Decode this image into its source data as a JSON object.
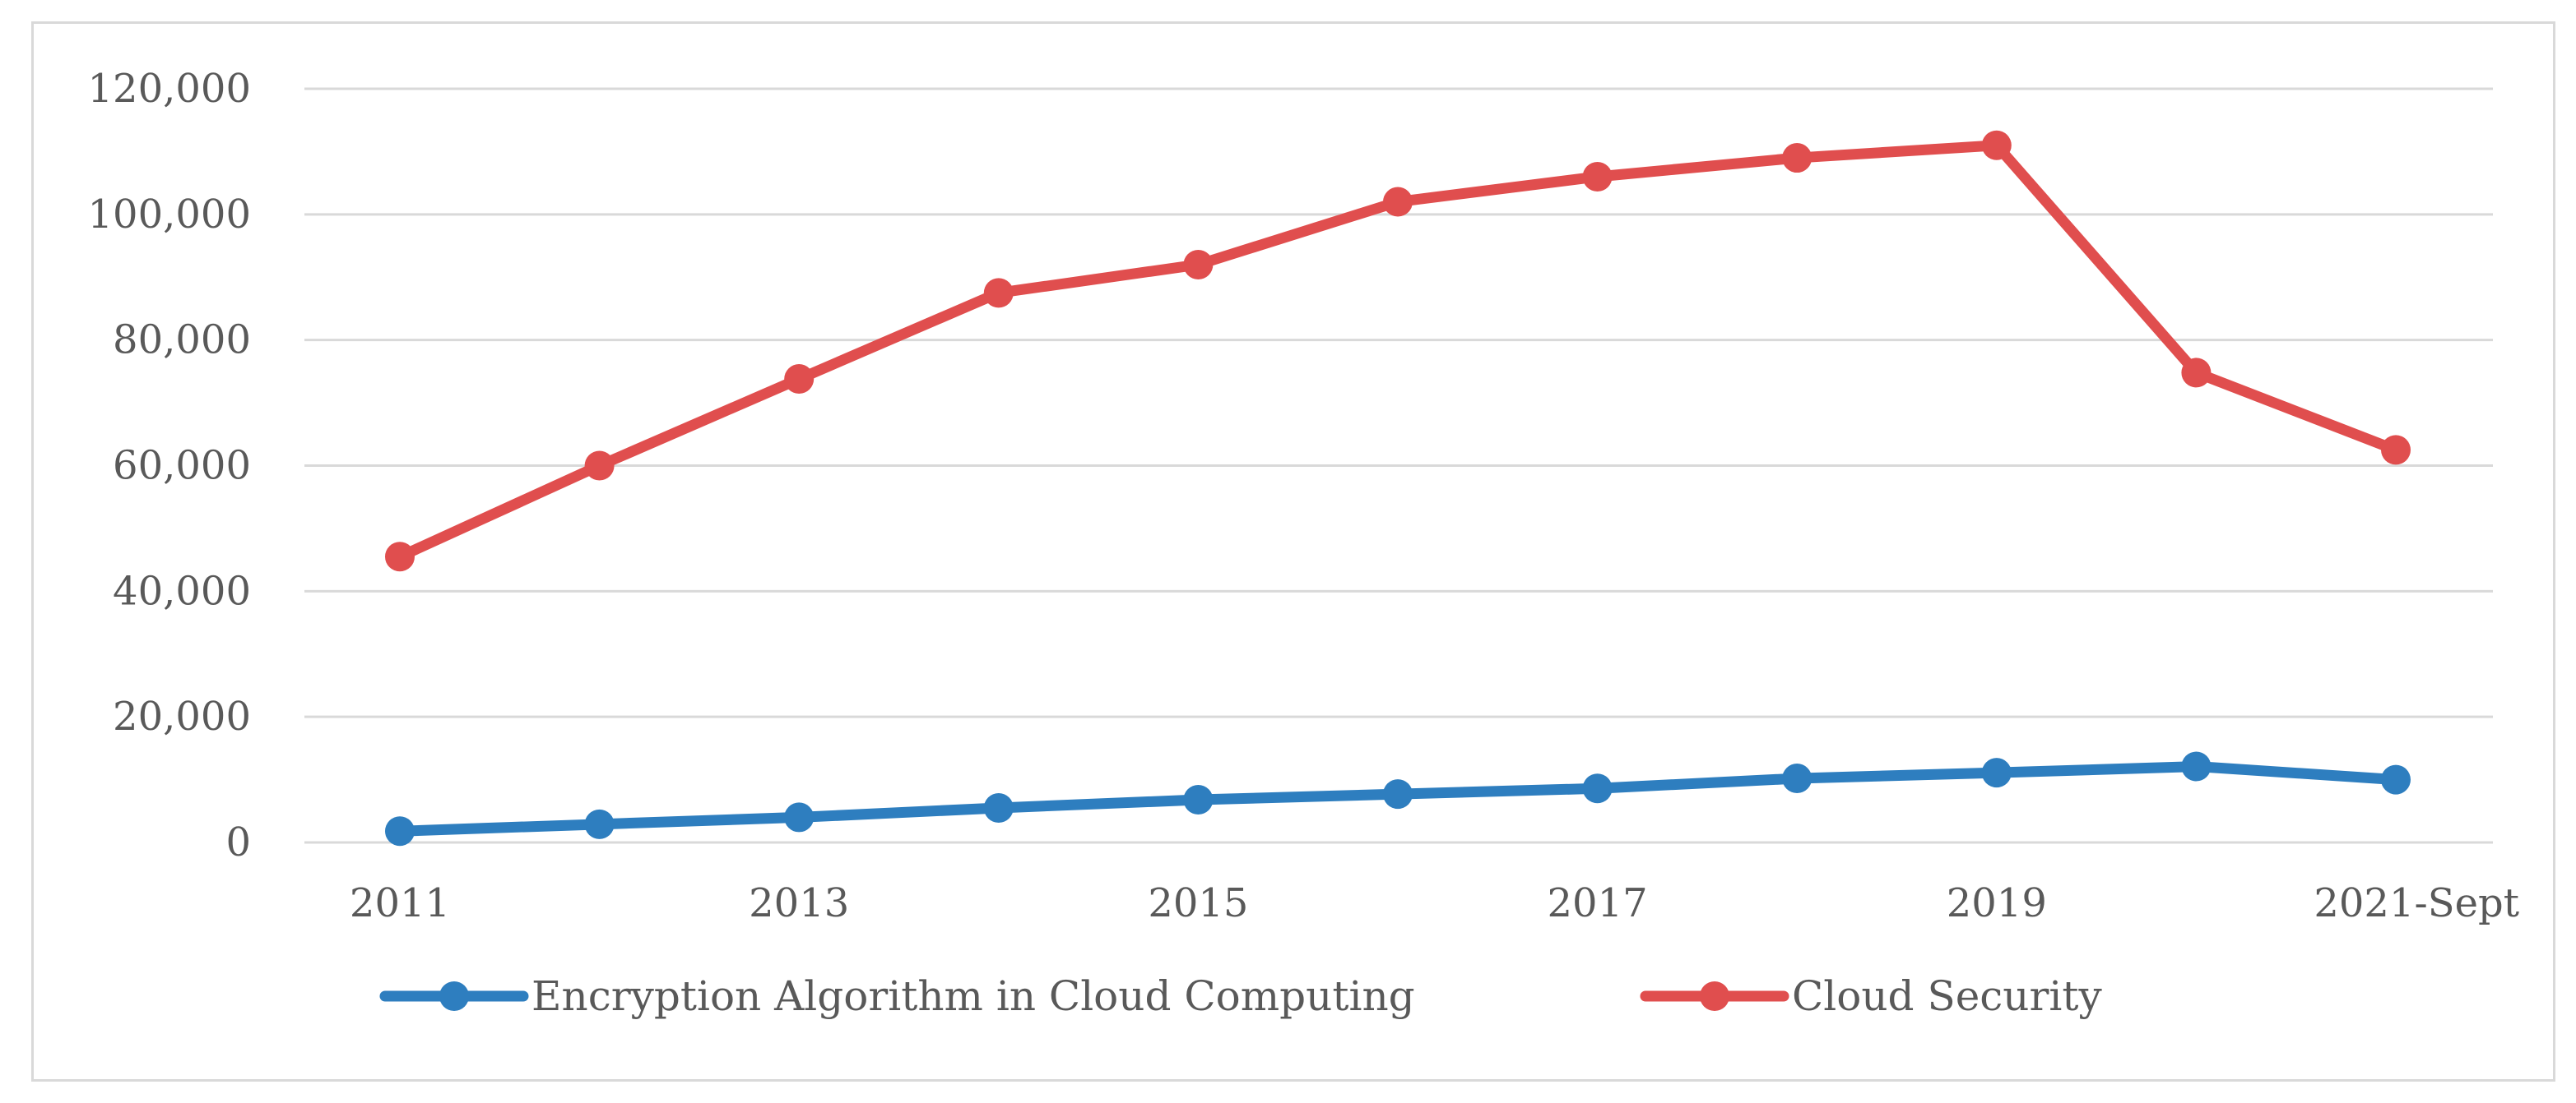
{
  "chart_data": {
    "type": "line",
    "title": "",
    "xlabel": "",
    "ylabel": "",
    "ylim": [
      0,
      120000
    ],
    "grid": true,
    "legend_position": "bottom",
    "x": [
      2011,
      2012,
      2013,
      2014,
      2015,
      2016,
      2017,
      2018,
      2019,
      2020,
      2021
    ],
    "x_tick_labels": [
      {
        "x": 2011,
        "label": "2011"
      },
      {
        "x": 2013,
        "label": "2013"
      },
      {
        "x": 2015,
        "label": "2015"
      },
      {
        "x": 2017,
        "label": "2017"
      },
      {
        "x": 2019,
        "label": "2019"
      },
      {
        "x": 2021,
        "label": "2021-Sept"
      }
    ],
    "y_ticks": [
      0,
      20000,
      40000,
      60000,
      80000,
      100000,
      120000
    ],
    "y_tick_labels": [
      "0",
      "20,000",
      "40,000",
      "60,000",
      "80,000",
      "100,000",
      "120,000"
    ],
    "series": [
      {
        "name": "Encryption Algorithm in Cloud Computing",
        "color": "#2e7ebf",
        "values": [
          1800,
          2900,
          4000,
          5500,
          6800,
          7700,
          8600,
          10200,
          11100,
          12100,
          10000
        ]
      },
      {
        "name": "Cloud Security",
        "color": "#e04e4e",
        "values": [
          45500,
          60000,
          73800,
          87500,
          92000,
          102000,
          106000,
          109000,
          111000,
          74800,
          62500
        ]
      }
    ]
  }
}
